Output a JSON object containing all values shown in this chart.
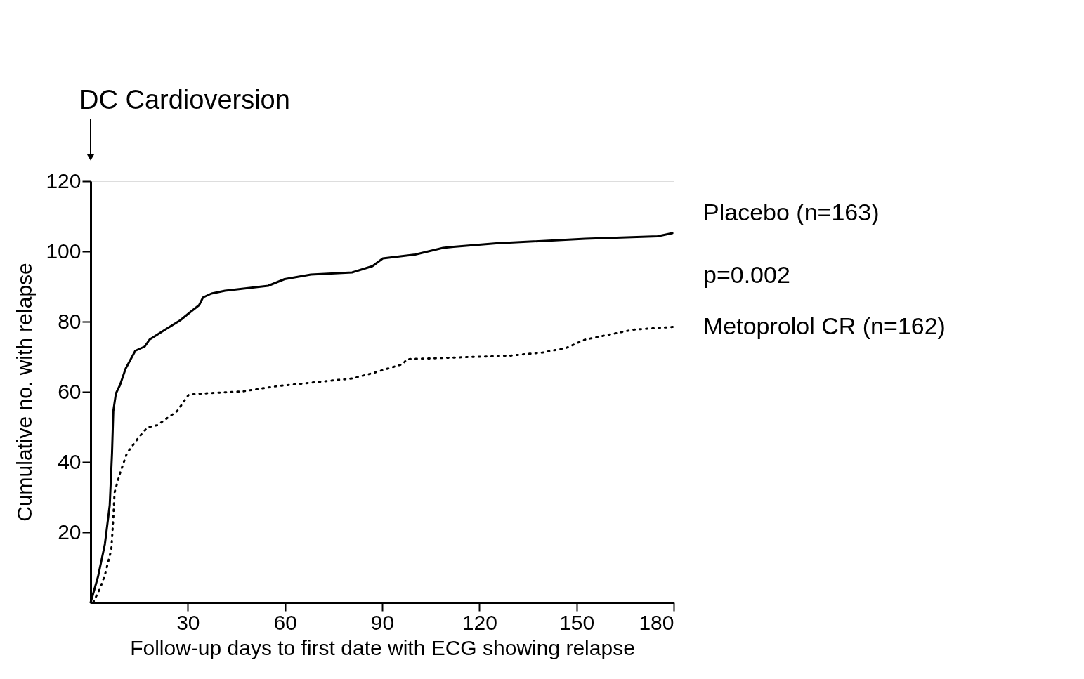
{
  "chart_data": {
    "type": "line",
    "xlabel": "Follow-up days to first date with ECG showing relapse",
    "ylabel": "Cumulative no. with relapse",
    "xlim": [
      0,
      180
    ],
    "xticks": [
      30,
      60,
      90,
      120,
      150,
      180
    ],
    "ylim": [
      0,
      120
    ],
    "yticks": [
      20,
      40,
      60,
      80,
      100,
      120
    ],
    "grid": false,
    "annotations": [
      "DC Cardioversion",
      "p=0.002"
    ],
    "series": [
      {
        "name": "Placebo (n=163)",
        "color": "#000000",
        "line_style": "solid",
        "x": [
          0,
          2.3,
          4.4,
          5.9,
          6.6,
          7,
          7.8,
          9.1,
          10.8,
          13.8,
          16.7,
          18.2,
          23.5,
          27.7,
          30.9,
          33.5,
          34.7,
          37.3,
          41.5,
          54.8,
          59.9,
          68,
          80.7,
          87,
          90.2,
          100.2,
          108.8,
          112,
          125.2,
          152.7,
          175,
          179.6
        ],
        "values": [
          0,
          7.4,
          16.6,
          27.7,
          42.5,
          54.5,
          59.5,
          62,
          66.6,
          71.7,
          72.9,
          74.9,
          78,
          80.4,
          82.8,
          84.7,
          86.9,
          88,
          88.8,
          90.2,
          92.1,
          93.4,
          94,
          95.8,
          98,
          99.1,
          101,
          101.3,
          102.3,
          103.6,
          104.3,
          105.2
        ]
      },
      {
        "name": "Metoprolol CR (n=162)",
        "color": "#000000",
        "line_style": "dotted",
        "x": [
          0.8,
          2.9,
          4.4,
          6.4,
          7,
          7.4,
          9.1,
          11.2,
          15,
          17.6,
          20.6,
          26.7,
          30.3,
          34.1,
          46.8,
          57.4,
          71.2,
          80.7,
          87,
          96.4,
          97.6,
          110.3,
          129.4,
          139.6,
          146.8,
          152.7,
          167.5,
          180
        ],
        "values": [
          0,
          4,
          7.8,
          15.2,
          24,
          31.4,
          36.9,
          42.5,
          47.2,
          49.9,
          50.5,
          54.5,
          59.2,
          59.5,
          60.1,
          61.6,
          62.9,
          63.8,
          65.3,
          67.9,
          69.3,
          69.7,
          70.3,
          71.2,
          72.5,
          74.9,
          77.7,
          78.5
        ]
      }
    ]
  }
}
